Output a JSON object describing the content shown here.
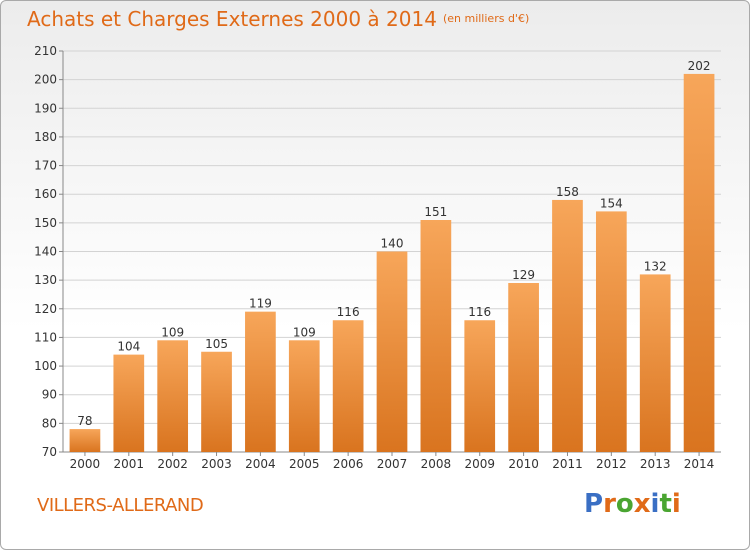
{
  "header": {
    "title": "Achats et Charges Externes 2000 à 2014",
    "unit": "(en milliers d'€)"
  },
  "footer": {
    "town": "VILLERS-ALLERAND",
    "logo_text": "Proxiti",
    "logo_colors": [
      "#3a6fc4",
      "#e06a18",
      "#4aa531",
      "#e06a18",
      "#3a6fc4",
      "#4aa531",
      "#e06a18"
    ]
  },
  "colors": {
    "bar_top": "#f7a65a",
    "bar_bottom": "#d9741f",
    "title": "#e06a18",
    "grid": "#d3d3d3"
  },
  "chart_data": {
    "type": "bar",
    "categories": [
      "2000",
      "2001",
      "2002",
      "2003",
      "2004",
      "2005",
      "2006",
      "2007",
      "2008",
      "2009",
      "2010",
      "2011",
      "2012",
      "2013",
      "2014"
    ],
    "values": [
      78,
      104,
      109,
      105,
      119,
      109,
      116,
      140,
      151,
      116,
      129,
      158,
      154,
      132,
      202
    ],
    "ylim": [
      70,
      210
    ],
    "yticks": [
      70,
      80,
      90,
      100,
      110,
      120,
      130,
      140,
      150,
      160,
      170,
      180,
      190,
      200,
      210
    ],
    "grid": true,
    "data_labels": true
  }
}
